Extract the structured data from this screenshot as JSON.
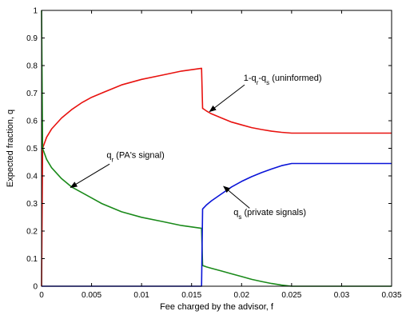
{
  "chart_data": {
    "type": "line",
    "title": "",
    "xlabel": "Fee charged by the advisor, f",
    "ylabel": "Expected fraction, q",
    "xlim": [
      0,
      0.035
    ],
    "ylim": [
      0,
      1
    ],
    "grid": false,
    "xticks": [
      "0",
      "0.005",
      "0.01",
      "0.015",
      "0.02",
      "0.025",
      "0.03",
      "0.035"
    ],
    "yticks": [
      "0",
      "0.1",
      "0.2",
      "0.3",
      "0.4",
      "0.5",
      "0.6",
      "0.7",
      "0.8",
      "0.9",
      "1"
    ],
    "series": [
      {
        "id": "uninformed",
        "color": "#e8120f",
        "x": [
          0,
          0.0001,
          0.0005,
          0.001,
          0.002,
          0.003,
          0.004,
          0.005,
          0.006,
          0.008,
          0.01,
          0.012,
          0.014,
          0.016,
          0.0161,
          0.0165,
          0.017,
          0.018,
          0.019,
          0.02,
          0.021,
          0.022,
          0.023,
          0.024,
          0.025,
          0.03,
          0.035
        ],
        "y": [
          0,
          0.5,
          0.54,
          0.57,
          0.61,
          0.64,
          0.665,
          0.685,
          0.7,
          0.73,
          0.75,
          0.765,
          0.78,
          0.79,
          0.645,
          0.635,
          0.625,
          0.61,
          0.595,
          0.585,
          0.575,
          0.568,
          0.562,
          0.558,
          0.555,
          0.555,
          0.555
        ]
      },
      {
        "id": "pa-signal",
        "color": "#1a8a1a",
        "x": [
          0,
          0.0001,
          0.0005,
          0.001,
          0.002,
          0.003,
          0.004,
          0.005,
          0.006,
          0.008,
          0.01,
          0.012,
          0.014,
          0.016,
          0.0161,
          0.0165,
          0.017,
          0.018,
          0.019,
          0.02,
          0.021,
          0.022,
          0.023,
          0.024,
          0.025,
          0.03,
          0.035
        ],
        "y": [
          1,
          0.5,
          0.46,
          0.43,
          0.39,
          0.36,
          0.34,
          0.32,
          0.3,
          0.27,
          0.25,
          0.235,
          0.22,
          0.21,
          0.075,
          0.07,
          0.065,
          0.055,
          0.045,
          0.035,
          0.025,
          0.017,
          0.01,
          0.004,
          0,
          0,
          0
        ]
      },
      {
        "id": "private-signals",
        "color": "#0a14d8",
        "x": [
          0,
          0.016,
          0.0161,
          0.0165,
          0.017,
          0.018,
          0.019,
          0.02,
          0.021,
          0.022,
          0.023,
          0.024,
          0.025,
          0.03,
          0.035
        ],
        "y": [
          0,
          0,
          0.28,
          0.295,
          0.31,
          0.335,
          0.36,
          0.38,
          0.397,
          0.412,
          0.425,
          0.437,
          0.445,
          0.445,
          0.445
        ]
      }
    ],
    "annotations": [
      {
        "id": "uninformed-label",
        "parts": [
          [
            "1-q",
            ""
          ],
          [
            "r",
            "sub"
          ],
          [
            "-q",
            ""
          ],
          [
            "s",
            "sub"
          ],
          [
            " (uninformed)",
            ""
          ]
        ],
        "text_at": [
          0.0202,
          0.745
        ],
        "arrow_from": [
          0.0203,
          0.73
        ],
        "arrow_to": [
          0.0168,
          0.633
        ]
      },
      {
        "id": "pa-signal-label",
        "parts": [
          [
            "q",
            ""
          ],
          [
            "r",
            "sub"
          ],
          [
            " (PA's signal)",
            ""
          ]
        ],
        "text_at": [
          0.0065,
          0.465
        ],
        "arrow_from": [
          0.0068,
          0.443
        ],
        "arrow_to": [
          0.0029,
          0.358
        ]
      },
      {
        "id": "private-signals-label",
        "parts": [
          [
            "q",
            ""
          ],
          [
            "s",
            "sub"
          ],
          [
            " (private signals)",
            ""
          ]
        ],
        "text_at": [
          0.0192,
          0.258
        ],
        "arrow_from": [
          0.0208,
          0.283
        ],
        "arrow_to": [
          0.0182,
          0.362
        ]
      }
    ]
  }
}
